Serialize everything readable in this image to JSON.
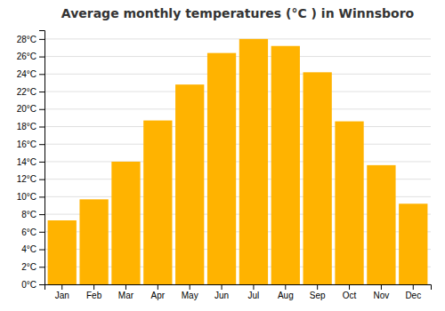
{
  "chart_data": {
    "type": "bar",
    "title": "Average monthly temperatures (°C ) in Winnsboro",
    "categories": [
      "Jan",
      "Feb",
      "Mar",
      "Apr",
      "May",
      "Jun",
      "Jul",
      "Aug",
      "Sep",
      "Oct",
      "Nov",
      "Dec"
    ],
    "values": [
      7.3,
      9.7,
      14.0,
      18.7,
      22.8,
      26.4,
      28.0,
      27.2,
      24.2,
      18.6,
      13.6,
      9.2
    ],
    "color": "#FFB300",
    "ylim": [
      0,
      29
    ],
    "yticks": [
      {
        "value": 0,
        "label": "0°C"
      },
      {
        "value": 2,
        "label": "2°C"
      },
      {
        "value": 4,
        "label": "4°C"
      },
      {
        "value": 6,
        "label": "6°C"
      },
      {
        "value": 8,
        "label": "8°C"
      },
      {
        "value": 10,
        "label": "10°C"
      },
      {
        "value": 12,
        "label": "12°C"
      },
      {
        "value": 14,
        "label": "14°C"
      },
      {
        "value": 16,
        "label": "16°C"
      },
      {
        "value": 18,
        "label": "18°C"
      },
      {
        "value": 20,
        "label": "20°C"
      },
      {
        "value": 22,
        "label": "22°C"
      },
      {
        "value": 24,
        "label": "24°C"
      },
      {
        "value": 26,
        "label": "26°C"
      },
      {
        "value": 28,
        "label": "28°C"
      }
    ],
    "grid": true
  }
}
